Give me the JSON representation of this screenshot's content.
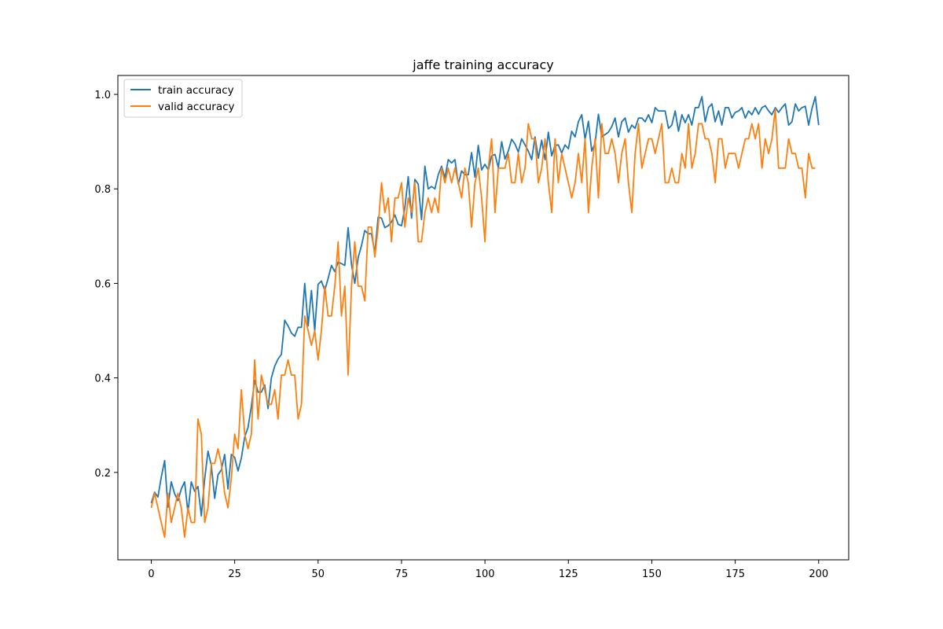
{
  "chart_data": {
    "type": "line",
    "title": "jaffe training accuracy",
    "xlabel": "",
    "ylabel": "",
    "xlim": [
      -10,
      209
    ],
    "ylim": [
      0.015,
      1.04
    ],
    "xticks": [
      0,
      25,
      50,
      75,
      100,
      125,
      150,
      175,
      200
    ],
    "yticks": [
      0.2,
      0.4,
      0.6,
      0.8,
      1.0
    ],
    "xtick_labels": [
      "0",
      "25",
      "50",
      "75",
      "100",
      "125",
      "150",
      "175",
      "200"
    ],
    "ytick_labels": [
      "0.2",
      "0.4",
      "0.6",
      "0.8",
      "1.0"
    ],
    "grid": false,
    "legend_position": "top-left",
    "series": [
      {
        "name": "train accuracy",
        "color": "#1f77b4",
        "values": [
          0.135,
          0.158,
          0.148,
          0.19,
          0.225,
          0.126,
          0.18,
          0.155,
          0.14,
          0.165,
          0.18,
          0.115,
          0.18,
          0.16,
          0.17,
          0.108,
          0.185,
          0.245,
          0.215,
          0.145,
          0.195,
          0.205,
          0.238,
          0.165,
          0.238,
          0.232,
          0.203,
          0.23,
          0.275,
          0.295,
          0.34,
          0.395,
          0.37,
          0.37,
          0.385,
          0.335,
          0.4,
          0.425,
          0.44,
          0.45,
          0.522,
          0.51,
          0.495,
          0.488,
          0.507,
          0.507,
          0.6,
          0.51,
          0.585,
          0.5,
          0.598,
          0.605,
          0.585,
          0.61,
          0.638,
          0.625,
          0.645,
          0.642,
          0.638,
          0.718,
          0.64,
          0.6,
          0.655,
          0.68,
          0.712,
          0.705,
          0.705,
          0.665,
          0.74,
          0.738,
          0.718,
          0.722,
          0.73,
          0.745,
          0.725,
          0.722,
          0.76,
          0.826,
          0.738,
          0.82,
          0.81,
          0.735,
          0.848,
          0.8,
          0.805,
          0.8,
          0.83,
          0.848,
          0.823,
          0.862,
          0.855,
          0.862,
          0.81,
          0.838,
          0.83,
          0.83,
          0.877,
          0.825,
          0.892,
          0.84,
          0.852,
          0.84,
          0.87,
          0.873,
          0.845,
          0.9,
          0.863,
          0.88,
          0.905,
          0.895,
          0.878,
          0.906,
          0.893,
          0.88,
          0.862,
          0.91,
          0.865,
          0.903,
          0.862,
          0.92,
          0.87,
          0.892,
          0.893,
          0.876,
          0.893,
          0.885,
          0.922,
          0.91,
          0.942,
          0.957,
          0.905,
          0.943,
          0.88,
          0.897,
          0.958,
          0.91,
          0.915,
          0.92,
          0.932,
          0.95,
          0.91,
          0.942,
          0.95,
          0.92,
          0.935,
          0.928,
          0.95,
          0.95,
          0.942,
          0.957,
          0.94,
          0.972,
          0.965,
          0.965,
          0.965,
          0.928,
          0.935,
          0.965,
          0.922,
          0.957,
          0.94,
          0.957,
          0.935,
          0.972,
          0.972,
          0.995,
          0.942,
          0.972,
          0.98,
          0.942,
          0.965,
          0.935,
          0.972,
          0.972,
          0.95,
          0.962,
          0.965,
          0.972,
          0.95,
          0.965,
          0.957,
          0.972,
          0.958,
          0.972,
          0.976,
          0.965,
          0.957,
          0.972,
          0.962,
          0.972,
          0.98,
          0.935,
          0.942,
          0.98,
          0.965,
          0.972,
          0.975,
          0.935,
          0.97,
          0.995,
          0.935
        ]
      },
      {
        "name": "valid accuracy",
        "color": "#ff7f0e",
        "values": [
          0.125,
          0.156,
          0.125,
          0.094,
          0.063,
          0.156,
          0.094,
          0.125,
          0.156,
          0.125,
          0.063,
          0.125,
          0.094,
          0.094,
          0.313,
          0.281,
          0.094,
          0.125,
          0.219,
          0.219,
          0.25,
          0.219,
          0.156,
          0.125,
          0.188,
          0.281,
          0.25,
          0.375,
          0.281,
          0.25,
          0.281,
          0.438,
          0.313,
          0.406,
          0.375,
          0.344,
          0.344,
          0.375,
          0.313,
          0.406,
          0.406,
          0.438,
          0.406,
          0.406,
          0.313,
          0.344,
          0.531,
          0.5,
          0.469,
          0.5,
          0.438,
          0.5,
          0.594,
          0.531,
          0.531,
          0.594,
          0.688,
          0.531,
          0.594,
          0.406,
          0.594,
          0.688,
          0.594,
          0.594,
          0.563,
          0.719,
          0.719,
          0.656,
          0.719,
          0.813,
          0.75,
          0.781,
          0.688,
          0.781,
          0.781,
          0.813,
          0.719,
          0.781,
          0.75,
          0.813,
          0.688,
          0.688,
          0.75,
          0.781,
          0.75,
          0.781,
          0.75,
          0.844,
          0.813,
          0.844,
          0.813,
          0.844,
          0.813,
          0.781,
          0.844,
          0.813,
          0.719,
          0.813,
          0.844,
          0.781,
          0.688,
          0.844,
          0.906,
          0.75,
          0.844,
          0.844,
          0.844,
          0.875,
          0.813,
          0.813,
          0.875,
          0.813,
          0.844,
          0.938,
          0.906,
          0.906,
          0.813,
          0.844,
          0.906,
          0.813,
          0.75,
          0.906,
          0.813,
          0.875,
          0.844,
          0.813,
          0.781,
          0.813,
          0.875,
          0.813,
          0.906,
          0.75,
          0.844,
          0.906,
          0.781,
          0.938,
          0.875,
          0.875,
          0.906,
          0.875,
          0.813,
          0.875,
          0.906,
          0.813,
          0.75,
          0.875,
          0.938,
          0.844,
          0.875,
          0.906,
          0.906,
          0.875,
          0.906,
          0.938,
          0.813,
          0.813,
          0.844,
          0.813,
          0.813,
          0.875,
          0.844,
          0.938,
          0.844,
          0.875,
          0.938,
          0.938,
          0.906,
          0.906,
          0.875,
          0.813,
          0.906,
          0.906,
          0.844,
          0.875,
          0.875,
          0.875,
          0.844,
          0.875,
          0.906,
          0.906,
          0.938,
          0.906,
          0.938,
          0.844,
          0.906,
          0.875,
          0.906,
          0.969,
          0.844,
          0.844,
          0.844,
          0.906,
          0.875,
          0.875,
          0.844,
          0.844,
          0.781,
          0.875,
          0.844,
          0.844
        ]
      }
    ]
  }
}
